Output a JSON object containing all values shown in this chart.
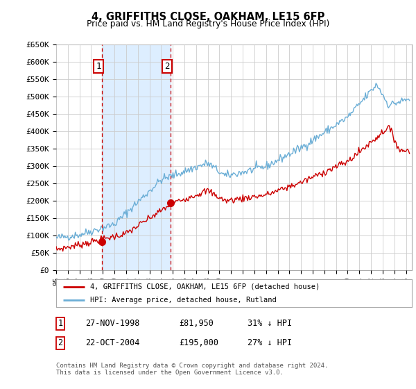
{
  "title": "4, GRIFFITHS CLOSE, OAKHAM, LE15 6FP",
  "subtitle": "Price paid vs. HM Land Registry's House Price Index (HPI)",
  "ylabel_ticks": [
    "£0",
    "£50K",
    "£100K",
    "£150K",
    "£200K",
    "£250K",
    "£300K",
    "£350K",
    "£400K",
    "£450K",
    "£500K",
    "£550K",
    "£600K",
    "£650K"
  ],
  "ytick_values": [
    0,
    50000,
    100000,
    150000,
    200000,
    250000,
    300000,
    350000,
    400000,
    450000,
    500000,
    550000,
    600000,
    650000
  ],
  "xmin": 1995.0,
  "xmax": 2025.5,
  "ymin": 0,
  "ymax": 650000,
  "hpi_color": "#6baed6",
  "hpi_fill_color": "#ddeeff",
  "price_color": "#cc0000",
  "purchase1_date": 1998.92,
  "purchase1_price": 81950,
  "purchase2_date": 2004.83,
  "purchase2_price": 195000,
  "legend_label_price": "4, GRIFFITHS CLOSE, OAKHAM, LE15 6FP (detached house)",
  "legend_label_hpi": "HPI: Average price, detached house, Rutland",
  "table_row1": [
    "1",
    "27-NOV-1998",
    "£81,950",
    "31% ↓ HPI"
  ],
  "table_row2": [
    "2",
    "22-OCT-2004",
    "£195,000",
    "27% ↓ HPI"
  ],
  "footnote": "Contains HM Land Registry data © Crown copyright and database right 2024.\nThis data is licensed under the Open Government Licence v3.0.",
  "background_color": "#ffffff",
  "grid_color": "#cccccc"
}
